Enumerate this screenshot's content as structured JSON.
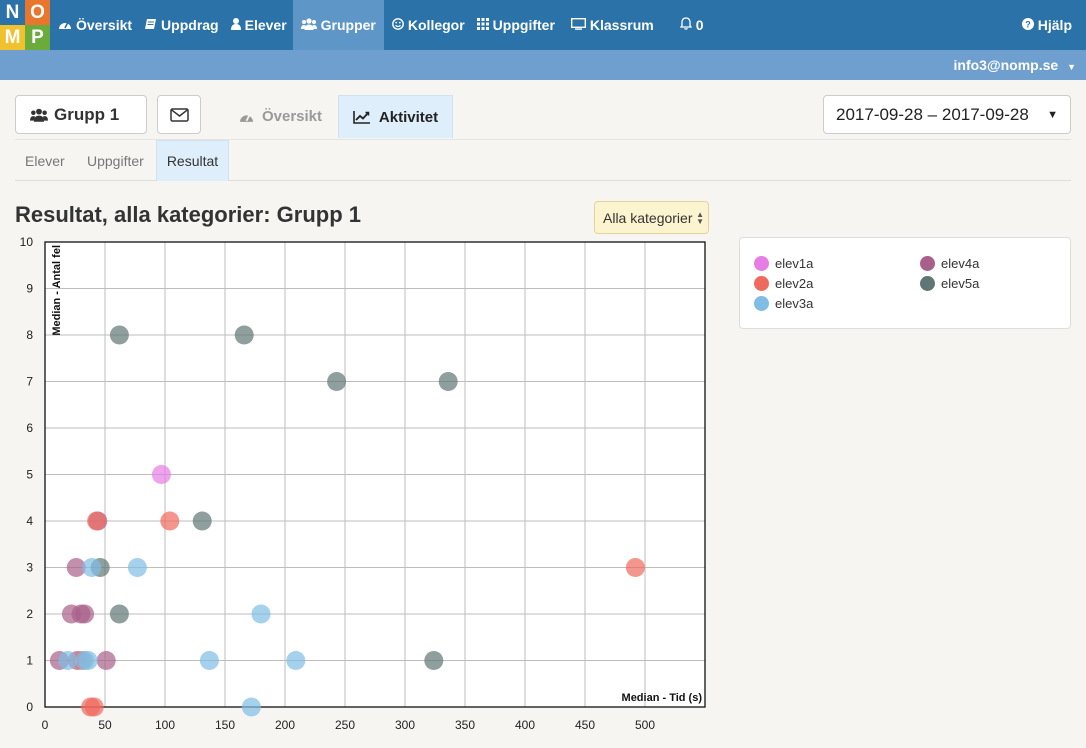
{
  "logo": {
    "letters": [
      "N",
      "O",
      "M",
      "P"
    ]
  },
  "nav": {
    "items": [
      {
        "label": "Översikt",
        "icon": "dashboard-icon"
      },
      {
        "label": "Uppdrag",
        "icon": "book-icon"
      },
      {
        "label": "Elever",
        "icon": "user-icon"
      },
      {
        "label": "Grupper",
        "icon": "users-icon",
        "active": true
      },
      {
        "label": "Kollegor",
        "icon": "smile-icon"
      },
      {
        "label": "Uppgifter",
        "icon": "grid-icon"
      },
      {
        "label": "Klassrum",
        "icon": "monitor-icon"
      },
      {
        "label": "0",
        "icon": "bell-icon"
      }
    ],
    "help": "Hjälp"
  },
  "account": {
    "email": "info3@nomp.se"
  },
  "group": {
    "name": "Grupp 1"
  },
  "tabs": {
    "overview": "Översikt",
    "activity": "Aktivitet"
  },
  "date_range": "2017-09-28 – 2017-09-28",
  "subtabs": [
    "Elever",
    "Uppgifter",
    "Resultat"
  ],
  "page": {
    "title": "Resultat, alla kategorier: Grupp 1"
  },
  "category_select": {
    "selected": "Alla kategorier"
  },
  "colors": {
    "accent": "#2a72a8",
    "active_tab": "#deeefa"
  },
  "chart_data": {
    "type": "scatter",
    "xlabel": "Median - Tid (s)",
    "ylabel": "Median - Antal fel",
    "xlim": [
      0,
      550
    ],
    "ylim": [
      0,
      10
    ],
    "xticks": [
      0,
      50,
      100,
      150,
      200,
      250,
      300,
      350,
      400,
      450,
      500
    ],
    "yticks": [
      0,
      1,
      2,
      3,
      4,
      5,
      6,
      7,
      8,
      9,
      10
    ],
    "grid": true,
    "legend": "right panel",
    "series": [
      {
        "name": "elev1a",
        "color": "#e67ee6",
        "points": [
          [
            97,
            5
          ]
        ]
      },
      {
        "name": "elev4a",
        "color": "#a85f8a",
        "points": [
          [
            12,
            1
          ],
          [
            22,
            2
          ],
          [
            26,
            3
          ],
          [
            27,
            1
          ],
          [
            30,
            2
          ],
          [
            33,
            2
          ],
          [
            44,
            4
          ],
          [
            51,
            1
          ]
        ]
      },
      {
        "name": "elev2a",
        "color": "#ef6a5e",
        "points": [
          [
            31,
            1
          ],
          [
            38,
            0
          ],
          [
            41,
            0
          ],
          [
            43,
            4
          ],
          [
            104,
            4
          ],
          [
            492,
            3
          ]
        ]
      },
      {
        "name": "elev5a",
        "color": "#5f7675",
        "points": [
          [
            46,
            3
          ],
          [
            62,
            8
          ],
          [
            62,
            2
          ],
          [
            131,
            4
          ],
          [
            166,
            8
          ],
          [
            243,
            7
          ],
          [
            324,
            1
          ],
          [
            336,
            7
          ]
        ]
      },
      {
        "name": "elev3a",
        "color": "#7fbde4",
        "points": [
          [
            19,
            1
          ],
          [
            33,
            1
          ],
          [
            36,
            1
          ],
          [
            39,
            3
          ],
          [
            77,
            3
          ],
          [
            137,
            1
          ],
          [
            172,
            0
          ],
          [
            180,
            2
          ],
          [
            209,
            1
          ]
        ]
      }
    ],
    "legend_order": [
      "elev1a",
      "elev4a",
      "elev2a",
      "elev5a",
      "elev3a"
    ]
  }
}
